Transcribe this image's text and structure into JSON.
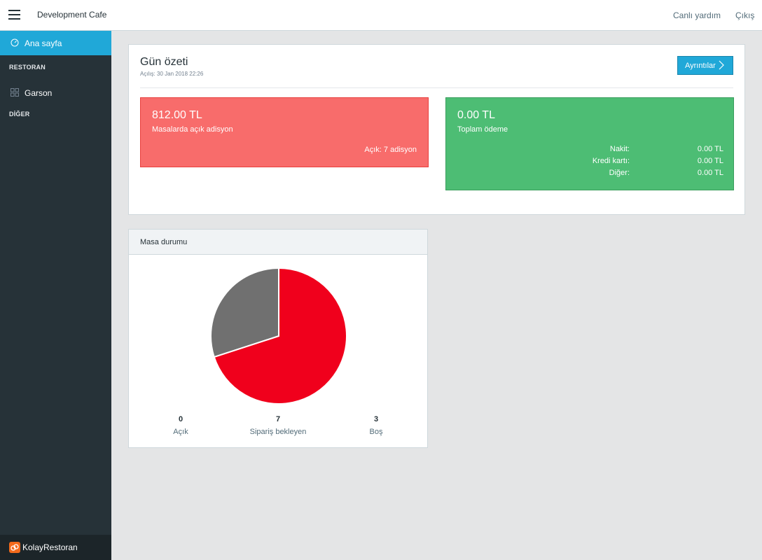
{
  "header": {
    "app_name": "Development Cafe",
    "links": {
      "help": "Canlı yardım",
      "logout": "Çıkış"
    }
  },
  "sidebar": {
    "active_item": {
      "label": "Ana sayfa",
      "icon": "speedometer-icon"
    },
    "sections": [
      {
        "title": "RESTORAN",
        "items": [
          {
            "label": "Garson",
            "icon": "grid-icon"
          }
        ]
      },
      {
        "title": "DİĞER",
        "items": []
      }
    ],
    "brand": "KolayRestoran"
  },
  "summary": {
    "title": "Gün özeti",
    "opened": "Açılış: 30 Jan 2018 22:26",
    "details_button": "Ayrıntılar",
    "open_checks": {
      "amount": "812.00 TL",
      "label": "Masalarda açık adisyon",
      "count": "Açık: 7 adisyon"
    },
    "payments": {
      "amount": "0.00 TL",
      "label": "Toplam ödeme",
      "rows": [
        {
          "name": "Nakit:",
          "value": "0.00 TL"
        },
        {
          "name": "Kredi kartı:",
          "value": "0.00 TL"
        },
        {
          "name": "Diğer:",
          "value": "0.00 TL"
        }
      ]
    }
  },
  "table_status": {
    "title": "Masa durumu",
    "legend": [
      {
        "count": "0",
        "label": "Açık"
      },
      {
        "count": "7",
        "label": "Sipariş bekleyen"
      },
      {
        "count": "3",
        "label": "Boş"
      }
    ]
  },
  "chart_data": {
    "type": "pie",
    "categories": [
      "Açık",
      "Sipariş bekleyen",
      "Boş"
    ],
    "values": [
      0,
      7,
      3
    ],
    "colors": [
      "#20a8d8",
      "#f0001c",
      "#707070"
    ]
  },
  "colors": {
    "accent": "#20a8d8",
    "danger": "#f86c6b",
    "success": "#4dbd74",
    "sidebar": "#263238"
  }
}
